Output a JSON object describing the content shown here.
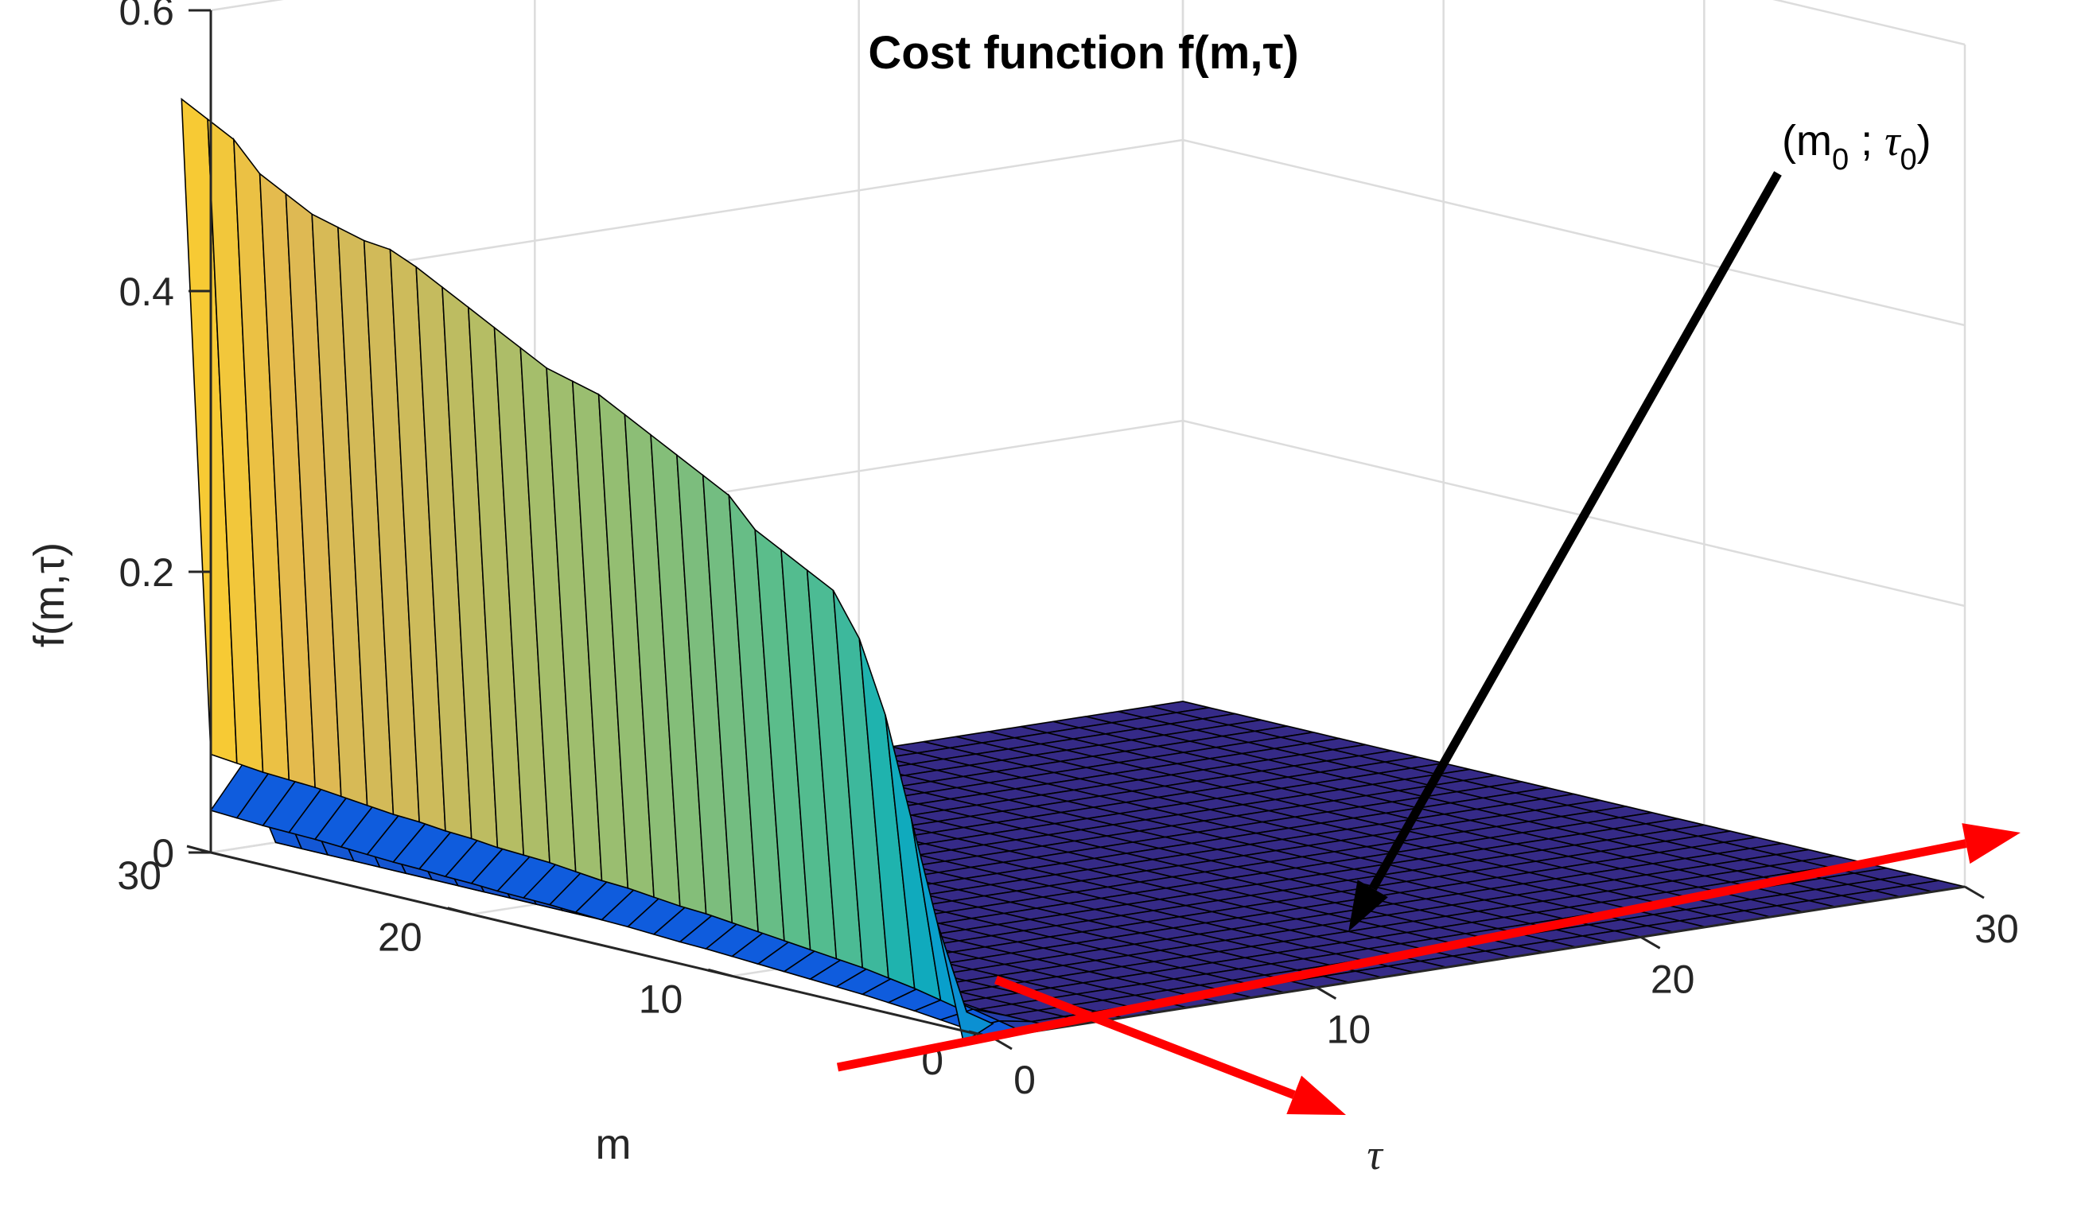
{
  "chart_data": {
    "type": "surface",
    "title": "Cost function f(m,τ)",
    "xlabel": "τ",
    "ylabel": "m",
    "zlabel": "f(m,τ)",
    "xlim": [
      0,
      30
    ],
    "ylim": [
      0,
      30
    ],
    "zlim": [
      0,
      0.6
    ],
    "xticks": [
      "0",
      "10",
      "20",
      "30"
    ],
    "yticks": [
      "0",
      "10",
      "20",
      "30"
    ],
    "zticks": [
      "0",
      "0.2",
      "0.4",
      "0.6"
    ],
    "grid": true,
    "colormap": "parula",
    "wall_tau_values": [
      0,
      1,
      2
    ],
    "ridge_m": [
      30,
      29,
      28,
      27,
      26,
      25,
      24,
      23,
      22,
      21,
      20,
      19,
      18,
      17,
      16,
      15,
      14,
      13,
      12,
      11,
      10,
      9,
      8,
      7,
      6,
      5,
      4,
      3,
      2,
      1,
      0
    ],
    "ridge_values_tau0": [
      0.54,
      0.53,
      0.52,
      0.5,
      0.49,
      0.48,
      0.475,
      0.47,
      0.468,
      0.46,
      0.45,
      0.44,
      0.43,
      0.42,
      0.41,
      0.405,
      0.4,
      0.39,
      0.38,
      0.37,
      0.36,
      0.35,
      0.33,
      0.32,
      0.31,
      0.3,
      0.27,
      0.22,
      0.15,
      0.08,
      0.0
    ],
    "ridge_values_tau1": [
      0.06,
      0.058,
      0.056,
      0.055,
      0.054,
      0.052,
      0.05,
      0.048,
      0.047,
      0.045,
      0.044,
      0.042,
      0.041,
      0.04,
      0.038,
      0.036,
      0.035,
      0.033,
      0.031,
      0.03,
      0.028,
      0.026,
      0.024,
      0.022,
      0.02,
      0.018,
      0.015,
      0.012,
      0.008,
      0.004,
      0.0
    ],
    "plateau_value": 0.0,
    "annotation": {
      "label_m": "(m",
      "label_sub0": "0",
      "label_sep": " ; ",
      "label_tau": "τ",
      "label_sub1": "0",
      "label_close": ")",
      "point_m": 5,
      "point_tau": 15
    },
    "colors": {
      "arrow": "#000000",
      "axis_arrows": "#ff0000",
      "plateau": "#352a87",
      "wall_low": "#0f5cdd",
      "wall_high": "#f9fb0e",
      "mesh_edge": "#000000",
      "grid": "#dcdcdc"
    }
  }
}
